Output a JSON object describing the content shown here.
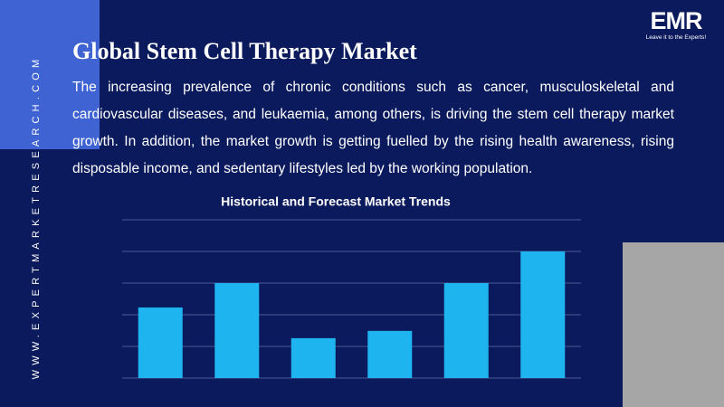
{
  "header": {
    "title": "Global Stem Cell Therapy Market",
    "description": "The increasing prevalence of chronic conditions such as cancer, musculoskeletal and cardiovascular diseases, and leukaemia, among others, is driving the stem cell therapy market growth. In addition, the market growth is getting fuelled by the rising health awareness, rising disposable income, and sedentary lifestyles led by the working population."
  },
  "logo": {
    "mark": "EMR",
    "tagline": "Leave it to the Experts!"
  },
  "website": "WWW.EXPERTMARKETRESEARCH.COM",
  "chart_data": {
    "type": "bar",
    "title": "Historical and Forecast Market Trends",
    "categories": [
      null,
      null,
      null,
      null,
      null,
      null
    ],
    "values": [
      2.23,
      3,
      1.26,
      1.49,
      3,
      4
    ],
    "color": "#1eb4f0",
    "ylim": [
      0,
      5
    ],
    "yticks": [
      0,
      1,
      2,
      3,
      4,
      5
    ],
    "grid": true
  }
}
